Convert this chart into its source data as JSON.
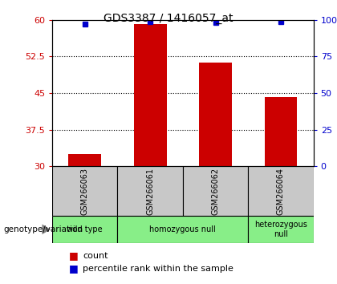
{
  "title": "GDS3387 / 1416057_at",
  "samples": [
    "GSM266063",
    "GSM266061",
    "GSM266062",
    "GSM266064"
  ],
  "bar_values": [
    32.5,
    59.2,
    51.2,
    44.2
  ],
  "percentile_values": [
    97,
    99,
    98,
    99
  ],
  "ylim_left": [
    30,
    60
  ],
  "ylim_right": [
    0,
    100
  ],
  "yticks_left": [
    30,
    37.5,
    45,
    52.5,
    60
  ],
  "yticks_right": [
    0,
    25,
    50,
    75,
    100
  ],
  "bar_color": "#cc0000",
  "dot_color": "#0000cc",
  "label_bg_color": "#c8c8c8",
  "genotype_bg_color": "#88ee88",
  "genotype_groups": [
    {
      "label": "wild type",
      "samples": [
        "GSM266063"
      ]
    },
    {
      "label": "homozygous null",
      "samples": [
        "GSM266061",
        "GSM266062"
      ]
    },
    {
      "label": "heterozygous\nnull",
      "samples": [
        "GSM266064"
      ]
    }
  ],
  "legend_count_label": "count",
  "legend_pct_label": "percentile rank within the sample",
  "genotype_label": "genotype/variation"
}
